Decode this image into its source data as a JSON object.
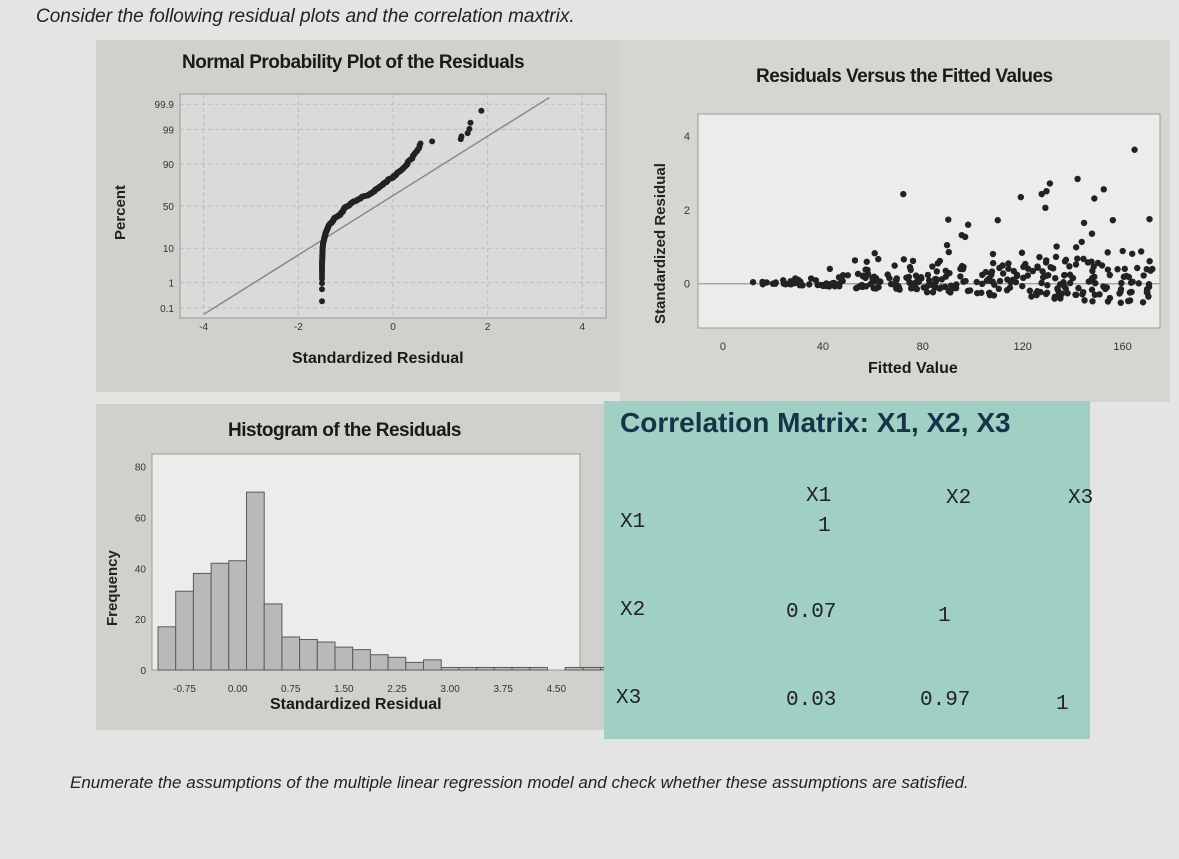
{
  "question": "Consider the following residual plots and the correlation maxtrix.",
  "footer": "Enumerate the assumptions of the multiple linear regression model and check whether these assumptions are satisfied.",
  "colors": {
    "points": "#222222",
    "bars": "#b9b9b9",
    "matrix_bg": "#9fd0c3",
    "panel_bg": "#d0d0cd"
  },
  "chart_data": [
    {
      "type": "scatter",
      "title": "Normal Probability Plot of the Residuals",
      "xlabel": "Standardized Residual",
      "ylabel": "Percent",
      "xticks": [
        "-4",
        "-2",
        "0",
        "2",
        "4"
      ],
      "yticks": [
        "99.9",
        "99",
        "90",
        "50",
        "10",
        "1",
        "0.1"
      ],
      "xlim": [
        -4.5,
        4.5
      ],
      "grid": true
    },
    {
      "type": "scatter",
      "title": "Residuals Versus the Fitted Values",
      "xlabel": "Fitted Value",
      "ylabel": "Standardized Residual",
      "xticks": [
        "0",
        "40",
        "80",
        "120",
        "160"
      ],
      "yticks": [
        "4",
        "2",
        "0"
      ],
      "xlim": [
        -10,
        175
      ],
      "ylim": [
        -1.2,
        4.6
      ],
      "grid": false
    },
    {
      "type": "bar",
      "title": "Histogram of the Residuals",
      "xlabel": "Standardized Residual",
      "ylabel": "Frequency",
      "xticks": [
        "-0.75",
        "0.00",
        "0.75",
        "1.50",
        "2.25",
        "3.00",
        "3.75",
        "4.50"
      ],
      "yticks": [
        "80",
        "60",
        "40",
        "20",
        "0"
      ],
      "bin_start": -1.125,
      "bin_width": 0.25,
      "values": [
        17,
        31,
        38,
        42,
        43,
        70,
        26,
        13,
        12,
        11,
        9,
        8,
        6,
        5,
        3,
        4,
        1,
        1,
        1,
        1,
        1,
        1,
        0,
        1,
        1,
        1,
        1,
        1
      ],
      "ylim": [
        0,
        85
      ]
    },
    {
      "type": "table",
      "title": "Correlation Matrix: X1, X2, X3",
      "columns": [
        "X1",
        "X2",
        "X3"
      ],
      "rows": [
        {
          "label": "X1",
          "values": [
            "1",
            "",
            ""
          ]
        },
        {
          "label": "X2",
          "values": [
            "0.07",
            "1",
            ""
          ]
        },
        {
          "label": "X3",
          "values": [
            "0.03",
            "0.97",
            "1"
          ]
        }
      ]
    }
  ]
}
